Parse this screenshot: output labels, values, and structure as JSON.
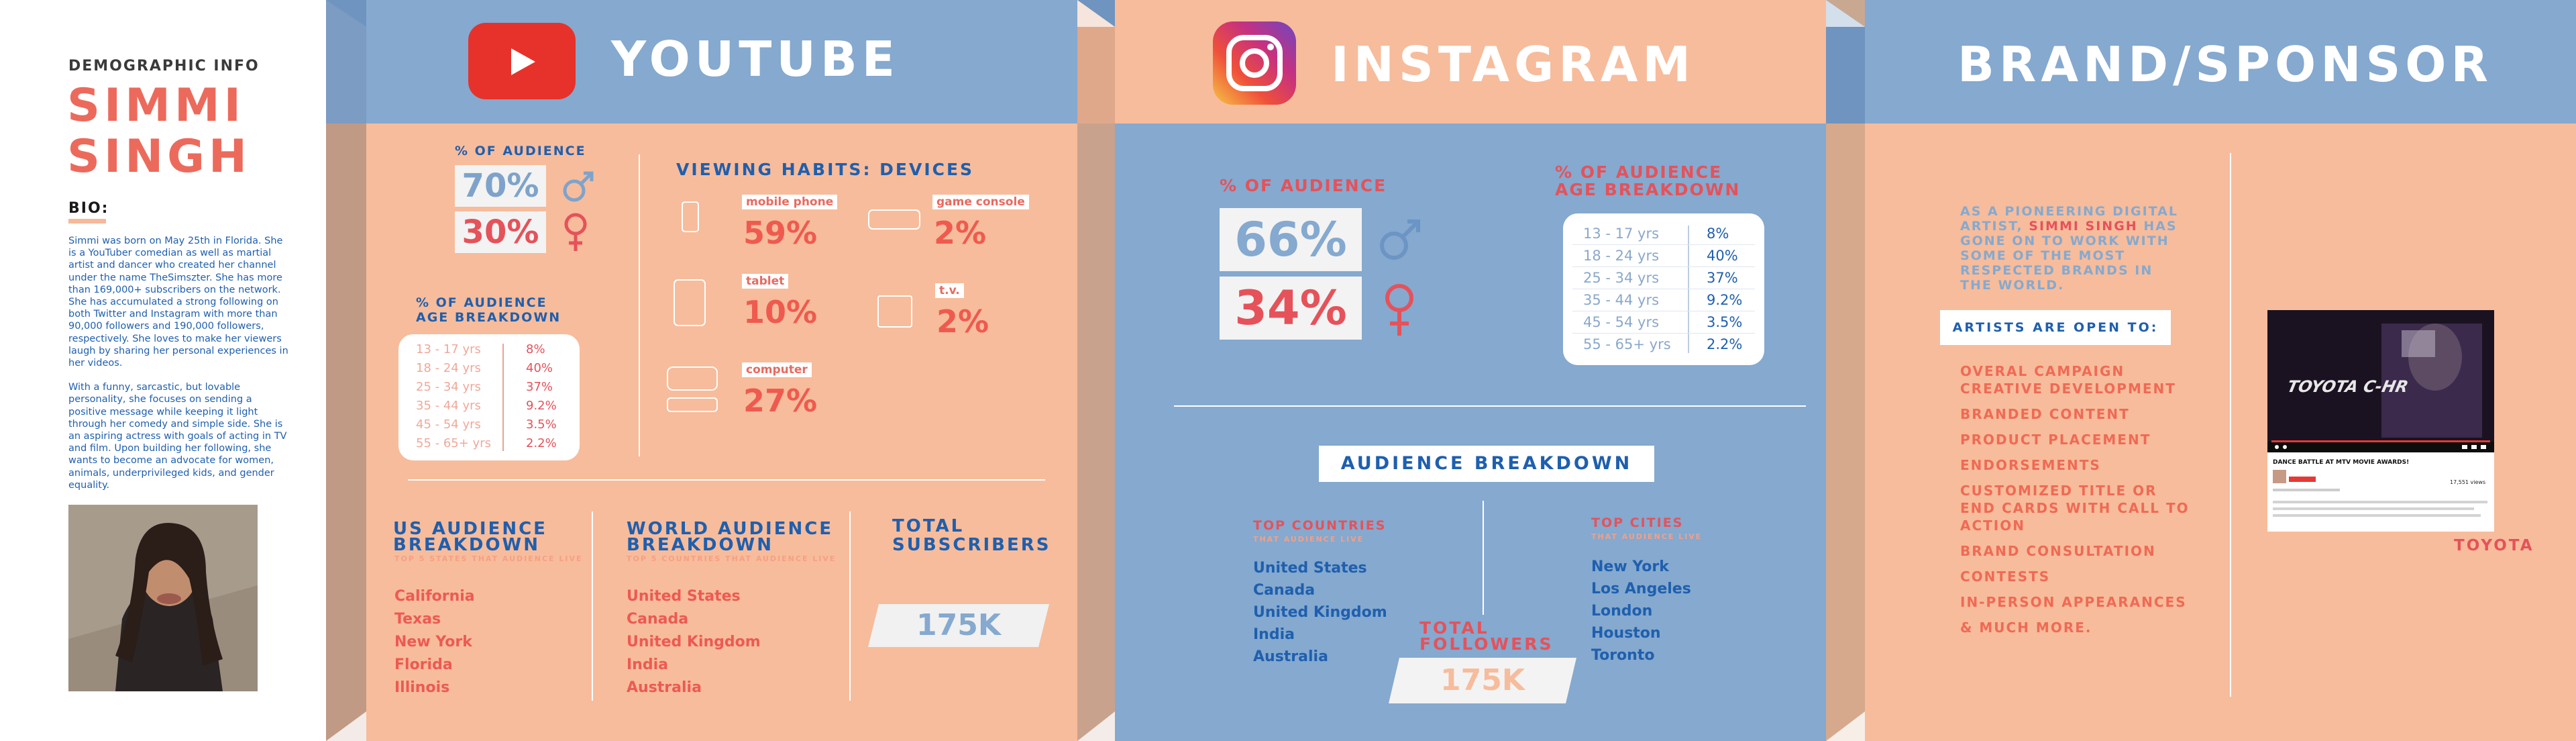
{
  "profile": {
    "section_label": "DEMOGRAPHIC INFO",
    "name_line1": "SIMMI",
    "name_line2": "SINGH",
    "bio_label": "BIO:",
    "bio_p1": "Simmi was born on May 25th in Florida. She is a YouTuber comedian as well as martial artist and dancer who created her channel under the name TheSimszter. She has more than 169,000+ subscribers on the network. She has accumulated a strong following on both Twitter and Instagram with more than 90,000 followers and 190,000 followers, respectively. She loves to make her viewers laugh by sharing her personal experiences in her videos.",
    "bio_p2": "With a funny, sarcastic, but lovable personality, she focuses on sending a positive message while keeping it light through her comedy and simple side. She is an aspiring actress with goals of acting in TV and film. Upon building her following, she wants to become an advocate for women, animals, underprivileged kids, and gender equality."
  },
  "youtube": {
    "title": "YOUTUBE",
    "pct_label": "% OF AUDIENCE",
    "male_pct": "70%",
    "female_pct": "30%",
    "age_label_l1": "% OF AUDIENCE",
    "age_label_l2": "AGE BREAKDOWN",
    "age_rows": [
      {
        "range": "13 - 17 yrs",
        "value": "8%"
      },
      {
        "range": "18 - 24 yrs",
        "value": "40%"
      },
      {
        "range": "25 - 34 yrs",
        "value": "37%"
      },
      {
        "range": "35 - 44 yrs",
        "value": "9.2%"
      },
      {
        "range": "45 - 54 yrs",
        "value": "3.5%"
      },
      {
        "range": "55 - 65+ yrs",
        "value": "2.2%"
      }
    ],
    "devices_label": "VIEWING HABITS: DEVICES",
    "devices": [
      {
        "label": "mobile phone",
        "value": "59%"
      },
      {
        "label": "game console",
        "value": "2%"
      },
      {
        "label": "tablet",
        "value": "10%"
      },
      {
        "label": "t.v.",
        "value": "2%"
      },
      {
        "label": "computer",
        "value": "27%"
      }
    ],
    "us_title_l1": "US AUDIENCE",
    "us_title_l2": "BREAKDOWN",
    "us_sub": "TOP 5 STATES THAT AUDIENCE LIVE",
    "us_states": [
      "California",
      "Texas",
      "New York",
      "Florida",
      "Illinois"
    ],
    "world_title_l1": "WORLD AUDIENCE",
    "world_title_l2": "BREAKDOWN",
    "world_sub": "TOP 5 COUNTRIES THAT AUDIENCE LIVE",
    "world_countries": [
      "United States",
      "Canada",
      "United Kingdom",
      "India",
      "Australia"
    ],
    "subs_title_l1": "TOTAL",
    "subs_title_l2": "SUBSCRIBERS",
    "subs_value": "175K"
  },
  "instagram": {
    "title": "INSTAGRAM",
    "pct_label": "% OF AUDIENCE",
    "male_pct": "66%",
    "female_pct": "34%",
    "age_label_l1": "% OF AUDIENCE",
    "age_label_l2": "AGE BREAKDOWN",
    "age_rows": [
      {
        "range": "13 - 17 yrs",
        "value": "8%"
      },
      {
        "range": "18 - 24 yrs",
        "value": "40%"
      },
      {
        "range": "25 - 34 yrs",
        "value": "37%"
      },
      {
        "range": "35 - 44 yrs",
        "value": "9.2%"
      },
      {
        "range": "45 - 54 yrs",
        "value": "3.5%"
      },
      {
        "range": "55 - 65+ yrs",
        "value": "2.2%"
      }
    ],
    "breakdown_label": "AUDIENCE BREAKDOWN",
    "countries_title": "TOP COUNTRIES",
    "countries_sub": "THAT AUDIENCE LIVE",
    "countries": [
      "United States",
      "Canada",
      "United Kingdom",
      "India",
      "Australia"
    ],
    "cities_title": "TOP CITIES",
    "cities_sub": "THAT AUDIENCE LIVE",
    "cities": [
      "New York",
      "Los Angeles",
      "London",
      "Houston",
      "Toronto"
    ],
    "followers_l1": "TOTAL",
    "followers_l2": "FOLLOWERS",
    "followers_value": "175K"
  },
  "brand": {
    "title": "BRAND/SPONSOR",
    "intro_a": "AS A PIONEERING DIGITAL",
    "intro_b": "ARTIST,",
    "intro_name": "SIMMI SINGH",
    "intro_c": "HAS",
    "intro_d": "GONE ON TO WORK WITH",
    "intro_e": "SOME OF THE MOST",
    "intro_f": "RESPECTED BRANDS IN",
    "intro_g": "THE WORLD.",
    "open_label": "ARTISTS ARE OPEN TO:",
    "items": [
      "OVERAL CAMPAIGN\nCREATIVE DEVELOPMENT",
      "BRANDED CONTENT",
      "PRODUCT PLACEMENT",
      "ENDORSEMENTS",
      "CUSTOMIZED TITLE OR\nEND CARDS WITH CALL TO\nACTION",
      "BRAND CONSULTATION",
      "CONTESTS",
      "IN-PERSON APPEARANCES",
      "& MUCH MORE."
    ],
    "video_title": "DANCE BATTLE AT MTV MOVIE AWARDS!",
    "video_views": "17,551 views",
    "video_overlay": "TOYOTA C-HR",
    "sponsor_name": "TOYOTA"
  },
  "colors": {
    "peach": "#f7bc9b",
    "blue": "#85a9cf",
    "red": "#e5525a",
    "navy": "#1f5fae"
  }
}
